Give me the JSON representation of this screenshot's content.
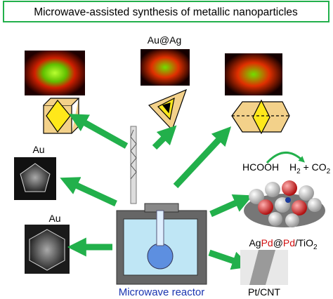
{
  "title": "Microwave-assisted synthesis of metallic nanoparticles",
  "labels": {
    "au_ag": "Au@Ag",
    "au_1": "Au",
    "au_2": "Au",
    "hcooh": "HCOOH",
    "reactor": "Microwave reactor",
    "pt_cnt": "Pt/CNT"
  },
  "products": {
    "gas": [
      "H",
      "2",
      " + CO",
      "2"
    ],
    "catalyst": [
      "Ag",
      "Pd",
      "@",
      "Pd",
      "/TiO",
      "2"
    ]
  }
}
